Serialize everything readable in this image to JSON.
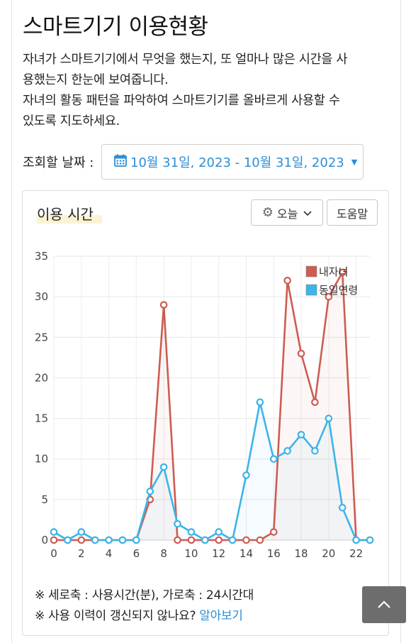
{
  "page": {
    "title": "스마트기기 이용현황",
    "intro_line1": "자녀가 스마트기기에서 무엇을 했는지, 또 얼마나 많은 시간을 사",
    "intro_line2": "용했는지 한눈에 보여줍니다.",
    "intro_line3": "자녀의 활동 패턴을 파악하여 스마트기기를 올바르게 사용할 수",
    "intro_line4": "있도록 지도하세요."
  },
  "date_filter": {
    "label": "조회할 날짜 :",
    "value": "10월 31일, 2023 - 10월 31일, 2023",
    "icon": "calendar-icon"
  },
  "usage_card": {
    "title": "이용 시간",
    "period_button": "오늘",
    "help_button": "도움말",
    "note1": "※ 세로축 : 사용시간(분), 가로축 : 24시간대",
    "note2_text": "※ 사용 이력이 갱신되지 않나요? ",
    "note2_link": "알아보기"
  },
  "colors": {
    "accent": "#2a8fd6",
    "series_child": "#cd5c52",
    "series_peer": "#3bb4ea"
  },
  "chart_data": {
    "type": "line",
    "x": [
      0,
      1,
      2,
      3,
      4,
      5,
      6,
      7,
      8,
      9,
      10,
      11,
      12,
      13,
      14,
      15,
      16,
      17,
      18,
      19,
      20,
      21,
      22,
      23
    ],
    "x_ticks": [
      0,
      2,
      4,
      6,
      8,
      10,
      12,
      14,
      16,
      18,
      20,
      22
    ],
    "ylim": [
      0,
      35
    ],
    "y_ticks": [
      0,
      5,
      10,
      15,
      20,
      25,
      30,
      35
    ],
    "grid": true,
    "legend_position": "top-right",
    "series": [
      {
        "name": "내자녀",
        "color": "#cd5c52",
        "values": [
          0,
          0,
          0,
          0,
          0,
          0,
          0,
          5,
          29,
          0,
          0,
          0,
          0,
          0,
          0,
          0,
          1,
          32,
          23,
          17,
          30,
          33,
          0,
          0
        ]
      },
      {
        "name": "동일연령",
        "color": "#3bb4ea",
        "values": [
          1,
          0,
          1,
          0,
          0,
          0,
          0,
          6,
          9,
          2,
          1,
          0,
          1,
          0,
          8,
          17,
          10,
          11,
          13,
          11,
          15,
          4,
          0,
          0
        ]
      }
    ]
  }
}
